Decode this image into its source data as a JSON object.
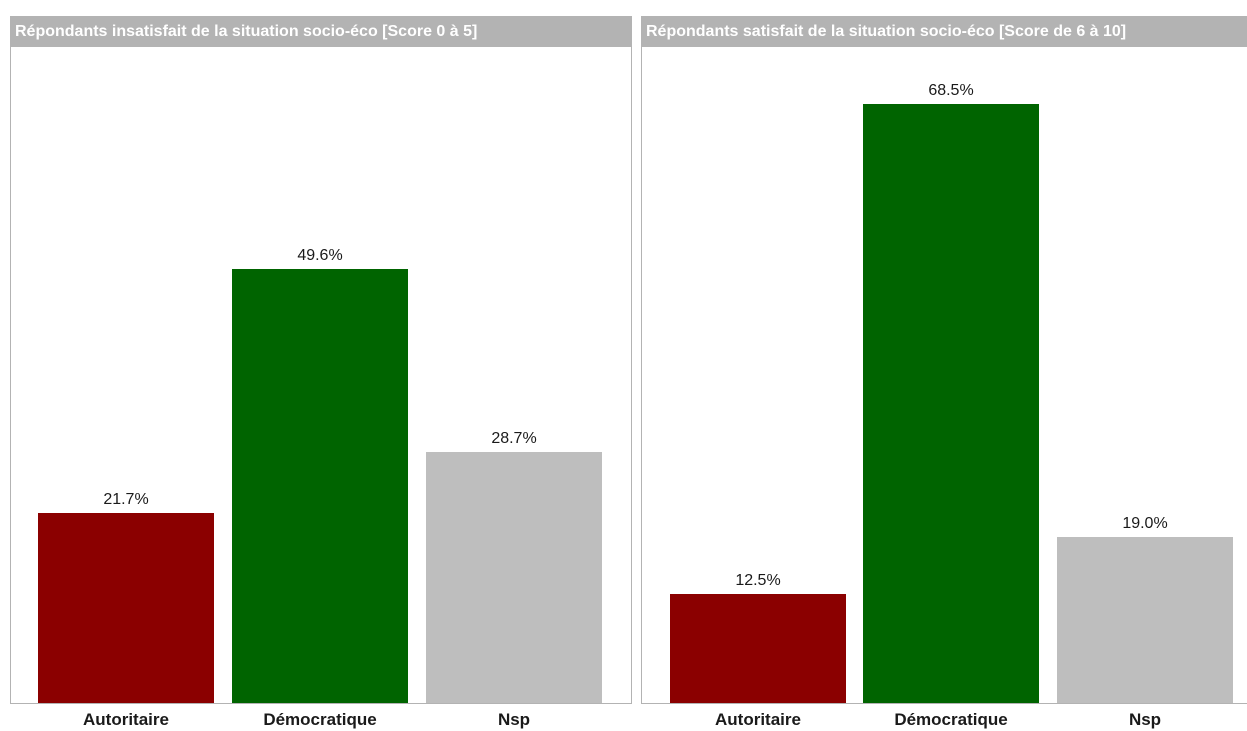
{
  "page_title": "",
  "chart_data": [
    {
      "type": "bar",
      "title": "Répondants insatisfait de la situation socio-éco [Score 0 à 5]",
      "categories": [
        "Autoritaire",
        "Démocratique",
        "Nsp"
      ],
      "values": [
        21.7,
        49.6,
        28.7
      ],
      "labels": [
        "21.7%",
        "49.6%",
        "28.7%"
      ],
      "colors": [
        "#8b0000",
        "#006400",
        "#bebebe"
      ],
      "ylim": [
        0,
        72
      ],
      "xlabel": "",
      "ylabel": "",
      "grid": false,
      "legend": "none"
    },
    {
      "type": "bar",
      "title": "Répondants satisfait de la situation socio-éco [Score de 6 à 10]",
      "categories": [
        "Autoritaire",
        "Démocratique",
        "Nsp"
      ],
      "values": [
        12.5,
        68.5,
        19.0
      ],
      "labels": [
        "12.5%",
        "68.5%",
        "19.0%"
      ],
      "colors": [
        "#8b0000",
        "#006400",
        "#bebebe"
      ],
      "ylim": [
        0,
        72
      ],
      "xlabel": "",
      "ylabel": "",
      "grid": false,
      "legend": "none"
    }
  ]
}
